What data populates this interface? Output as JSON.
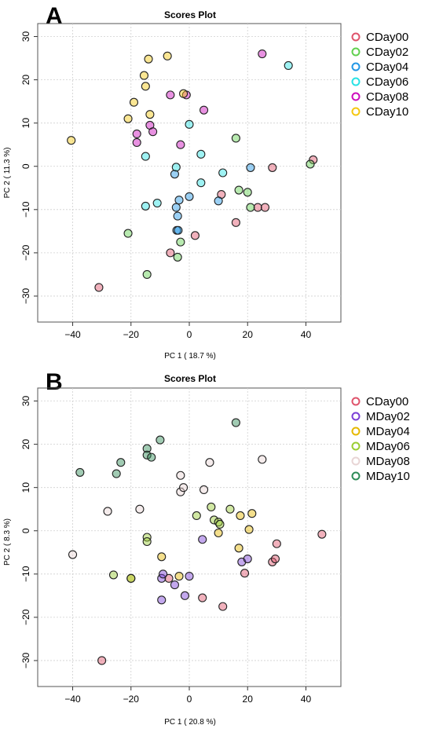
{
  "chart_data": [
    {
      "type": "scatter",
      "panel_label": "A",
      "title": "Scores Plot",
      "xlabel": "PC 1 ( 18.7 %)",
      "ylabel": "PC 2 ( 11.3 %)",
      "xlim": [
        -52,
        52
      ],
      "ylim": [
        -36,
        33
      ],
      "xticks": [
        -40,
        -20,
        0,
        20,
        40
      ],
      "yticks": [
        -30,
        -20,
        -10,
        0,
        10,
        20,
        30
      ],
      "grid": true,
      "legend_position": "right",
      "series": [
        {
          "name": "CDay00",
          "color": "#DF536B",
          "points": [
            [
              -31,
              -28
            ],
            [
              -6.5,
              -20
            ],
            [
              2,
              -16
            ],
            [
              11,
              -6.5
            ],
            [
              16,
              -13
            ],
            [
              23.5,
              -9.5
            ],
            [
              26,
              -9.5
            ],
            [
              28.5,
              -0.3
            ],
            [
              42.5,
              1.5
            ]
          ]
        },
        {
          "name": "CDay02",
          "color": "#61D04F",
          "points": [
            [
              -21,
              -15.5
            ],
            [
              -14.5,
              -25
            ],
            [
              -4,
              -21
            ],
            [
              -3,
              -17.5
            ],
            [
              16,
              6.5
            ],
            [
              17,
              -5.5
            ],
            [
              20,
              -6
            ],
            [
              21,
              -9.5
            ],
            [
              41.5,
              0.5
            ]
          ]
        },
        {
          "name": "CDay04",
          "color": "#2297E6",
          "points": [
            [
              -5,
              -1.8
            ],
            [
              -4.5,
              -9.5
            ],
            [
              -4,
              -11.5
            ],
            [
              -4.3,
              -14.8
            ],
            [
              -3.8,
              -14.8
            ],
            [
              -3.5,
              -7.8
            ],
            [
              0,
              -7
            ],
            [
              10,
              -8
            ],
            [
              21,
              -0.3
            ]
          ]
        },
        {
          "name": "CDay06",
          "color": "#28E2E5",
          "points": [
            [
              -15,
              2.3
            ],
            [
              -15,
              -9.2
            ],
            [
              -11,
              -8.5
            ],
            [
              -4.5,
              -0.2
            ],
            [
              0,
              9.7
            ],
            [
              4,
              2.8
            ],
            [
              4,
              -3.8
            ],
            [
              11.5,
              -1.5
            ],
            [
              34,
              23.3
            ]
          ]
        },
        {
          "name": "CDay08",
          "color": "#CD0BBC",
          "points": [
            [
              -18,
              7.5
            ],
            [
              -18,
              5.5
            ],
            [
              -13.5,
              9.5
            ],
            [
              -12.5,
              8
            ],
            [
              -6.5,
              16.5
            ],
            [
              -3,
              5
            ],
            [
              -1,
              16.5
            ],
            [
              5,
              13
            ],
            [
              25,
              26
            ]
          ]
        },
        {
          "name": "CDay10",
          "color": "#F5C710",
          "points": [
            [
              -40.5,
              6
            ],
            [
              -21,
              11
            ],
            [
              -19,
              14.8
            ],
            [
              -15.5,
              21
            ],
            [
              -15,
              18.5
            ],
            [
              -14,
              24.8
            ],
            [
              -13.5,
              12
            ],
            [
              -7.5,
              25.5
            ],
            [
              -2,
              16.8
            ]
          ]
        }
      ]
    },
    {
      "type": "scatter",
      "panel_label": "B",
      "title": "Scores Plot",
      "xlabel": "PC 1 ( 20.8 %)",
      "ylabel": "PC 2 ( 8.3 %)",
      "xlim": [
        -52,
        52
      ],
      "ylim": [
        -36,
        33
      ],
      "xticks": [
        -40,
        -20,
        0,
        20,
        40
      ],
      "yticks": [
        -30,
        -20,
        -10,
        0,
        10,
        20,
        30
      ],
      "grid": true,
      "legend_position": "right",
      "series": [
        {
          "name": "CDay00",
          "color": "#DF536B",
          "points": [
            [
              -30,
              -30
            ],
            [
              -7,
              -11
            ],
            [
              4.5,
              -15.5
            ],
            [
              11.5,
              -17.5
            ],
            [
              19,
              -9.8
            ],
            [
              28.5,
              -7.2
            ],
            [
              29.5,
              -6.5
            ],
            [
              30,
              -3
            ],
            [
              45.5,
              -0.8
            ]
          ]
        },
        {
          "name": "MDay02",
          "color": "#7B3FD6",
          "points": [
            [
              -9.5,
              -16
            ],
            [
              -9.5,
              -11
            ],
            [
              -9,
              -10
            ],
            [
              -5,
              -12.5
            ],
            [
              -1.5,
              -15
            ],
            [
              0,
              -10.5
            ],
            [
              4.5,
              -2
            ],
            [
              18,
              -7.2
            ],
            [
              20,
              -6.5
            ]
          ]
        },
        {
          "name": "MDay04",
          "color": "#E6B800",
          "points": [
            [
              -20,
              -11
            ],
            [
              -9.5,
              -6
            ],
            [
              -3.5,
              -10.5
            ],
            [
              10,
              -0.5
            ],
            [
              17,
              -4
            ],
            [
              17.5,
              3.5
            ],
            [
              20.5,
              0.3
            ],
            [
              21.5,
              4
            ]
          ]
        },
        {
          "name": "MDay06",
          "color": "#9ACD32",
          "points": [
            [
              -26,
              -10.2
            ],
            [
              -20,
              -11
            ],
            [
              -14.5,
              -1.5
            ],
            [
              -14.5,
              -2.5
            ],
            [
              2.5,
              3.5
            ],
            [
              7.5,
              5.5
            ],
            [
              8.5,
              2.5
            ],
            [
              10,
              2
            ],
            [
              10.5,
              1.5
            ],
            [
              14,
              5
            ]
          ]
        },
        {
          "name": "MDay08",
          "color": "#E8D5D5",
          "points": [
            [
              -40,
              -5.5
            ],
            [
              -28,
              4.5
            ],
            [
              -17,
              5
            ],
            [
              -3,
              12.8
            ],
            [
              -3,
              9
            ],
            [
              -2,
              10
            ],
            [
              5,
              9.5
            ],
            [
              7,
              15.8
            ],
            [
              25,
              16.5
            ]
          ]
        },
        {
          "name": "MDay10",
          "color": "#2E8B57",
          "points": [
            [
              -37.5,
              13.5
            ],
            [
              -25,
              13.2
            ],
            [
              -23.5,
              15.8
            ],
            [
              -14.5,
              19
            ],
            [
              -14.5,
              17.5
            ],
            [
              -13,
              17
            ],
            [
              -10,
              21
            ],
            [
              16,
              25
            ]
          ]
        }
      ]
    }
  ]
}
